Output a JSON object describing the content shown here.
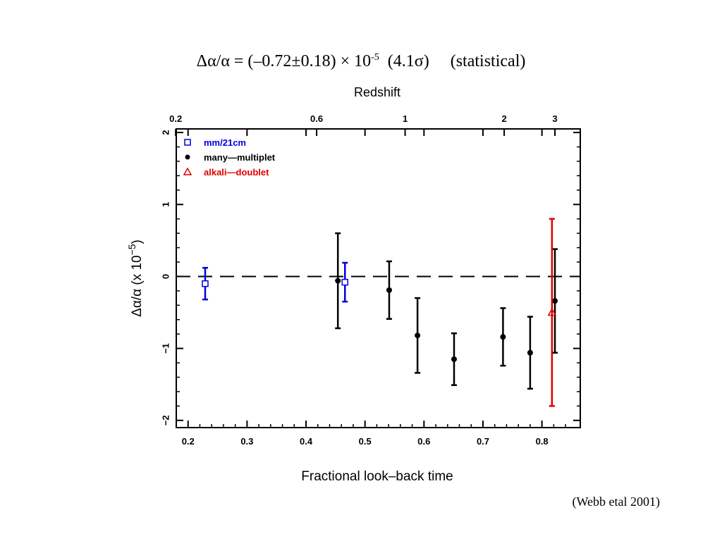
{
  "slide": {
    "title": "Δα/α = (–0.72±0.18) × 10-5  (4.1σ)     (statistical)",
    "title_parts": {
      "lhs": "Δα/α = (–0.72±0.18) × 10",
      "exp": "-5",
      "rest": "  (4.1σ)     (statistical)"
    },
    "citation": "(Webb etal 2001)"
  },
  "chart_data": {
    "type": "scatter",
    "title": "",
    "xlabel": "Fractional look–back time",
    "ylabel": "Δα/α (x 10−5)",
    "ylabel_parts": {
      "base": "Δα/α  (x 10",
      "sup": "−5",
      "close": ")"
    },
    "top_axis_label": "Redshift",
    "xlim": [
      0.18,
      0.865
    ],
    "ylim": [
      -2.1,
      2.05
    ],
    "xticks": [
      0.2,
      0.3,
      0.4,
      0.5,
      0.6,
      0.7,
      0.8
    ],
    "xtick_labels": [
      "0.2",
      "0.3",
      "0.4",
      "0.5",
      "0.6",
      "0.7",
      "0.8"
    ],
    "yticks": [
      -2,
      -1,
      0,
      1,
      2
    ],
    "ytick_labels": [
      "−2",
      "−1",
      "0",
      "1",
      "2"
    ],
    "top_ticks": [
      {
        "label": "0.2",
        "x": 0.179
      },
      {
        "label": "0.6",
        "x": 0.418
      },
      {
        "label": "1",
        "x": 0.568
      },
      {
        "label": "2",
        "x": 0.736
      },
      {
        "label": "3",
        "x": 0.822
      }
    ],
    "reference_line": {
      "y": 0,
      "style": "dashed"
    },
    "grid": false,
    "legend_position": "top-left",
    "series": [
      {
        "name": "mm/21cm",
        "marker": "open-square",
        "color": "#0000e0",
        "points": [
          {
            "x": 0.229,
            "y": -0.1,
            "yerr": 0.22
          },
          {
            "x": 0.466,
            "y": -0.08,
            "yerr": 0.27
          }
        ]
      },
      {
        "name": "many—multiplet",
        "marker": "filled-circle",
        "color": "#000000",
        "points": [
          {
            "x": 0.454,
            "y": -0.06,
            "yerr": 0.66
          },
          {
            "x": 0.541,
            "y": -0.19,
            "yerr": 0.4
          },
          {
            "x": 0.589,
            "y": -0.82,
            "yerr": 0.52
          },
          {
            "x": 0.651,
            "y": -1.15,
            "yerr": 0.36
          },
          {
            "x": 0.734,
            "y": -0.84,
            "yerr": 0.4
          },
          {
            "x": 0.78,
            "y": -1.06,
            "yerr": 0.5
          },
          {
            "x": 0.822,
            "y": -0.34,
            "yerr": 0.72
          }
        ]
      },
      {
        "name": "alkali—doublet",
        "marker": "open-triangle",
        "color": "#e00000",
        "points": [
          {
            "x": 0.817,
            "y": -0.5,
            "yerr": 1.3
          }
        ]
      }
    ]
  }
}
